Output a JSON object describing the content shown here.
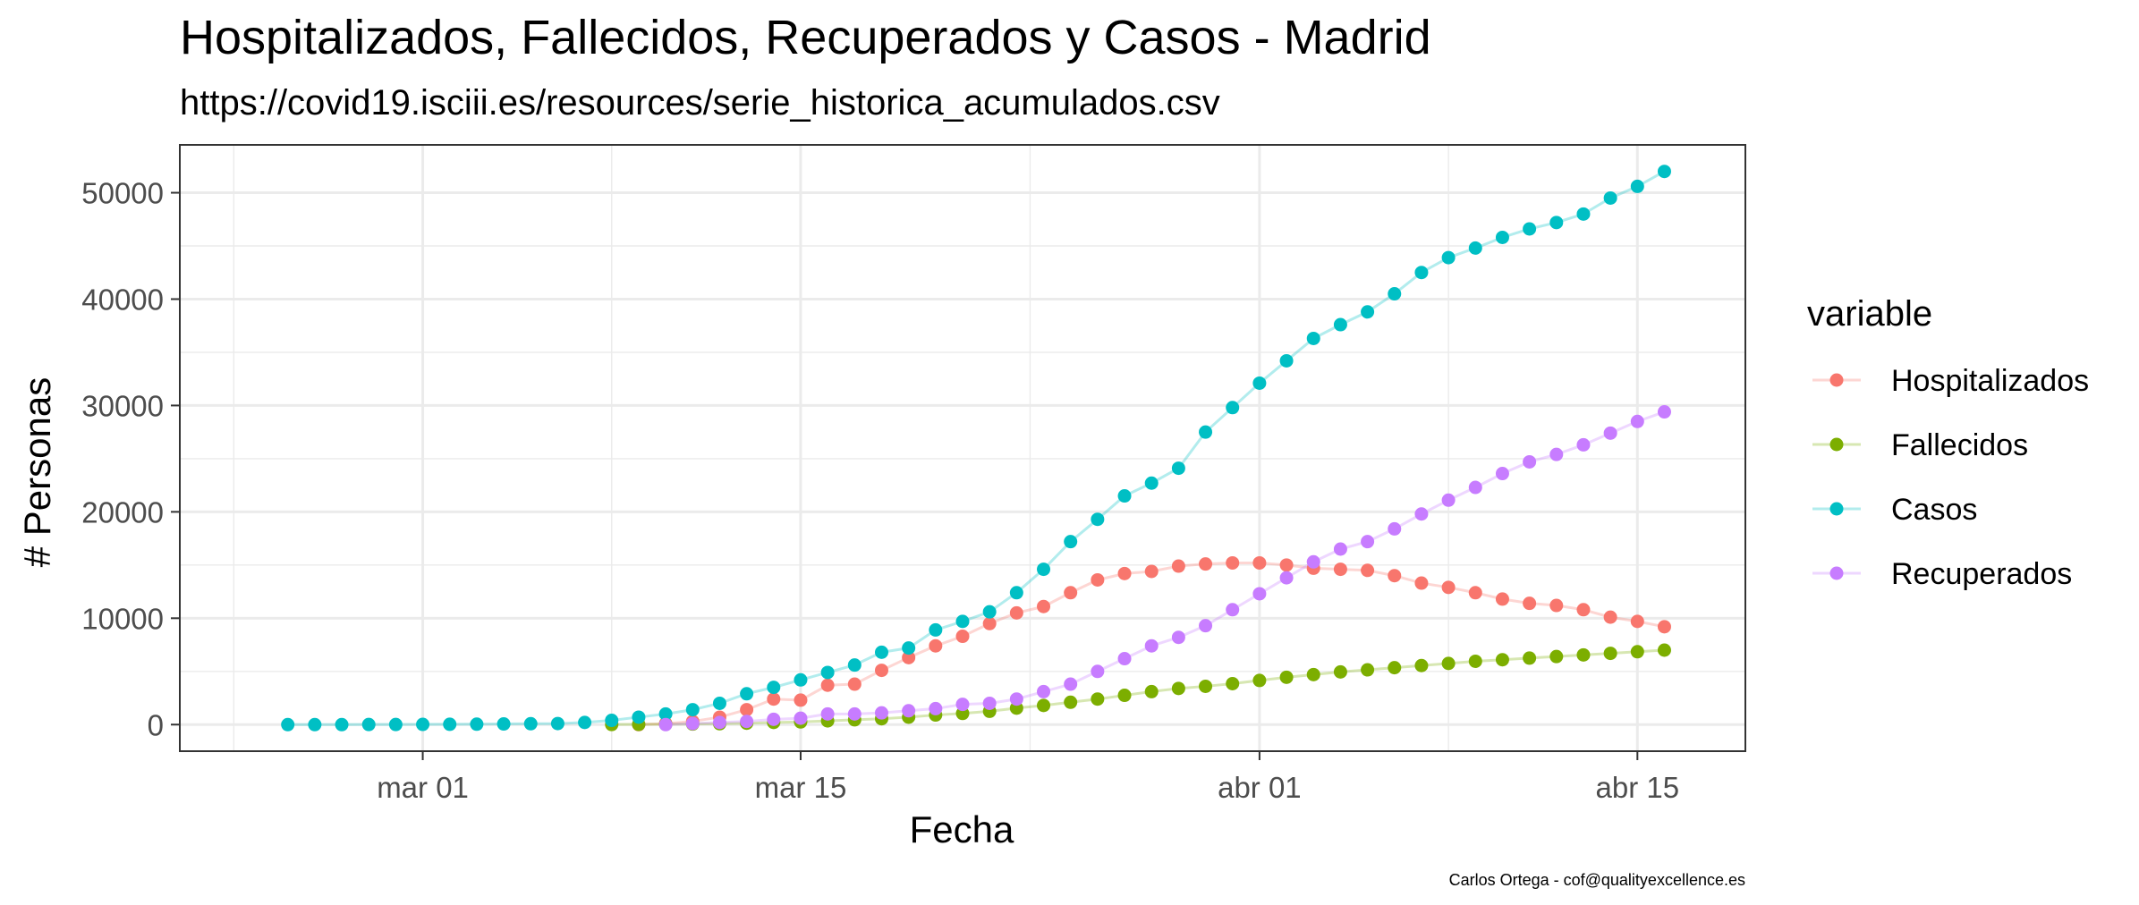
{
  "chart_data": {
    "type": "line",
    "title": "Hospitalizados, Fallecidos, Recuperados y Casos - Madrid",
    "subtitle": "https://covid19.isciii.es/resources/serie_historica_acumulados.csv",
    "caption": "Carlos Ortega - cof@qualityexcellence.es",
    "xlabel": "Fecha",
    "ylabel": "# Personas",
    "x_type": "date",
    "xlim": [
      "2020-02-21",
      "2020-04-19"
    ],
    "ylim": [
      -2500,
      54500
    ],
    "x_ticks": [
      {
        "date": "2020-03-01",
        "label": "mar 01"
      },
      {
        "date": "2020-03-15",
        "label": "mar 15"
      },
      {
        "date": "2020-04-01",
        "label": "abr 01"
      },
      {
        "date": "2020-04-15",
        "label": "abr 15"
      }
    ],
    "y_ticks": [
      0,
      10000,
      20000,
      30000,
      40000,
      50000
    ],
    "y_tick_labels": [
      "0",
      "10000",
      "20000",
      "30000",
      "40000",
      "50000"
    ],
    "grid": true,
    "legend": {
      "title": "variable",
      "position": "right"
    },
    "series": [
      {
        "name": "Hospitalizados",
        "color": "#F8766D",
        "x": [
          "2020-03-09",
          "2020-03-10",
          "2020-03-11",
          "2020-03-12",
          "2020-03-13",
          "2020-03-14",
          "2020-03-15",
          "2020-03-16",
          "2020-03-17",
          "2020-03-18",
          "2020-03-19",
          "2020-03-20",
          "2020-03-21",
          "2020-03-22",
          "2020-03-23",
          "2020-03-24",
          "2020-03-25",
          "2020-03-26",
          "2020-03-27",
          "2020-03-28",
          "2020-03-29",
          "2020-03-30",
          "2020-03-31",
          "2020-04-01",
          "2020-04-02",
          "2020-04-03",
          "2020-04-04",
          "2020-04-05",
          "2020-04-06",
          "2020-04-07",
          "2020-04-08",
          "2020-04-09",
          "2020-04-10",
          "2020-04-11",
          "2020-04-12",
          "2020-04-13",
          "2020-04-14",
          "2020-04-15",
          "2020-04-16"
        ],
        "values": [
          0,
          100,
          300,
          700,
          1400,
          2400,
          2300,
          3700,
          3800,
          5100,
          6300,
          7400,
          8300,
          9500,
          10500,
          11100,
          12400,
          13600,
          14200,
          14400,
          14900,
          15100,
          15200,
          15200,
          15000,
          14700,
          14600,
          14500,
          14000,
          13300,
          12900,
          12400,
          11800,
          11400,
          11200,
          10800,
          10100,
          9700,
          9200
        ]
      },
      {
        "name": "Fallecidos",
        "color": "#7CAE00",
        "x": [
          "2020-03-08",
          "2020-03-09",
          "2020-03-10",
          "2020-03-11",
          "2020-03-12",
          "2020-03-13",
          "2020-03-14",
          "2020-03-15",
          "2020-03-16",
          "2020-03-17",
          "2020-03-18",
          "2020-03-19",
          "2020-03-20",
          "2020-03-21",
          "2020-03-22",
          "2020-03-23",
          "2020-03-24",
          "2020-03-25",
          "2020-03-26",
          "2020-03-27",
          "2020-03-28",
          "2020-03-29",
          "2020-03-30",
          "2020-03-31",
          "2020-04-01",
          "2020-04-02",
          "2020-04-03",
          "2020-04-04",
          "2020-04-05",
          "2020-04-06",
          "2020-04-07",
          "2020-04-08",
          "2020-04-09",
          "2020-04-10",
          "2020-04-11",
          "2020-04-12",
          "2020-04-13",
          "2020-04-14",
          "2020-04-15",
          "2020-04-16"
        ],
        "values": [
          10,
          20,
          30,
          50,
          80,
          130,
          200,
          250,
          350,
          450,
          550,
          700,
          900,
          1050,
          1250,
          1550,
          1800,
          2100,
          2400,
          2750,
          3100,
          3400,
          3600,
          3850,
          4150,
          4450,
          4700,
          4950,
          5150,
          5350,
          5550,
          5750,
          5950,
          6100,
          6250,
          6400,
          6550,
          6700,
          6850,
          7000
        ]
      },
      {
        "name": "Casos",
        "color": "#00BFC4",
        "x": [
          "2020-02-25",
          "2020-02-26",
          "2020-02-27",
          "2020-02-28",
          "2020-02-29",
          "2020-03-01",
          "2020-03-02",
          "2020-03-03",
          "2020-03-04",
          "2020-03-05",
          "2020-03-06",
          "2020-03-07",
          "2020-03-08",
          "2020-03-09",
          "2020-03-10",
          "2020-03-11",
          "2020-03-12",
          "2020-03-13",
          "2020-03-14",
          "2020-03-15",
          "2020-03-16",
          "2020-03-17",
          "2020-03-18",
          "2020-03-19",
          "2020-03-20",
          "2020-03-21",
          "2020-03-22",
          "2020-03-23",
          "2020-03-24",
          "2020-03-25",
          "2020-03-26",
          "2020-03-27",
          "2020-03-28",
          "2020-03-29",
          "2020-03-30",
          "2020-03-31",
          "2020-04-01",
          "2020-04-02",
          "2020-04-03",
          "2020-04-04",
          "2020-04-05",
          "2020-04-06",
          "2020-04-07",
          "2020-04-08",
          "2020-04-09",
          "2020-04-10",
          "2020-04-11",
          "2020-04-12",
          "2020-04-13",
          "2020-04-14",
          "2020-04-15",
          "2020-04-16"
        ],
        "values": [
          0,
          0,
          0,
          10,
          10,
          20,
          30,
          40,
          60,
          80,
          100,
          200,
          400,
          700,
          1000,
          1400,
          2000,
          2900,
          3500,
          4200,
          4900,
          5600,
          6800,
          7200,
          8900,
          9700,
          10600,
          12400,
          14600,
          17200,
          19300,
          21500,
          22700,
          24100,
          27500,
          29800,
          32100,
          34200,
          36300,
          37600,
          38800,
          40500,
          42500,
          43900,
          44800,
          45800,
          46600,
          47200,
          48000,
          49500,
          50600,
          52000
        ]
      },
      {
        "name": "Recuperados",
        "color": "#C77CFF",
        "x": [
          "2020-03-10",
          "2020-03-11",
          "2020-03-12",
          "2020-03-13",
          "2020-03-14",
          "2020-03-15",
          "2020-03-16",
          "2020-03-17",
          "2020-03-18",
          "2020-03-19",
          "2020-03-20",
          "2020-03-21",
          "2020-03-22",
          "2020-03-23",
          "2020-03-24",
          "2020-03-25",
          "2020-03-26",
          "2020-03-27",
          "2020-03-28",
          "2020-03-29",
          "2020-03-30",
          "2020-03-31",
          "2020-04-01",
          "2020-04-02",
          "2020-04-03",
          "2020-04-04",
          "2020-04-05",
          "2020-04-06",
          "2020-04-07",
          "2020-04-08",
          "2020-04-09",
          "2020-04-10",
          "2020-04-11",
          "2020-04-12",
          "2020-04-13",
          "2020-04-14",
          "2020-04-15",
          "2020-04-16"
        ],
        "values": [
          0,
          100,
          200,
          300,
          500,
          600,
          1000,
          1000,
          1100,
          1300,
          1500,
          1900,
          2000,
          2400,
          3100,
          3800,
          5000,
          6200,
          7400,
          8200,
          9300,
          10800,
          12300,
          13800,
          15300,
          16500,
          17200,
          18400,
          19800,
          21100,
          22300,
          23600,
          24700,
          25400,
          26300,
          27400,
          28500,
          29400
        ]
      }
    ]
  }
}
